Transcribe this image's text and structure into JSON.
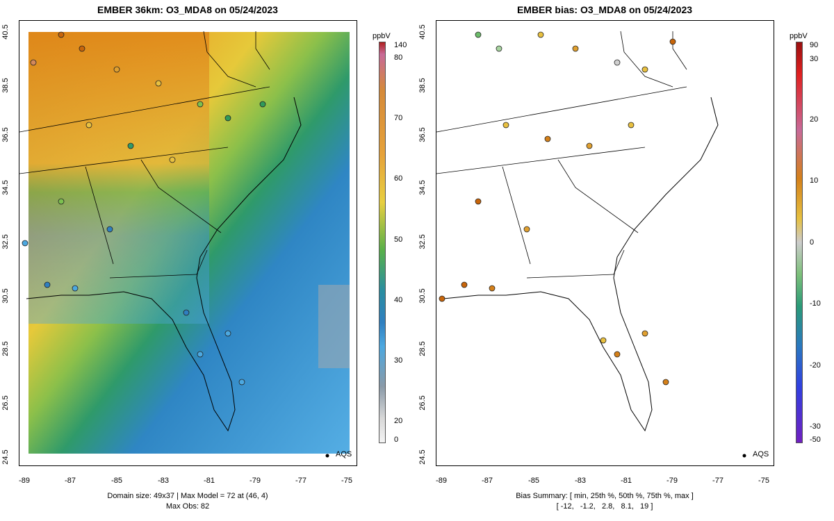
{
  "left_panel": {
    "title": "EMBER 36km: O3_MDA8 on 05/24/2023",
    "footer_line1": "Domain size: 49x37 | Max Model = 72 at (46, 4)",
    "footer_line2": "Max Obs: 82",
    "legend_label": "AQS",
    "colorbar": {
      "unit": "ppbV",
      "labels": [
        "140",
        "80",
        "70",
        "60",
        "50",
        "40",
        "30",
        "20",
        "0"
      ]
    }
  },
  "right_panel": {
    "title": "EMBER bias: O3_MDA8 on 05/24/2023",
    "footer_line1": "Bias Summary: [ min, 25th %, 50th %, 75th %, max ]",
    "footer_line2": "[ -12,   -1.2,   2.8,   8.1,   19 ]",
    "legend_label": "AQS",
    "colorbar": {
      "unit": "ppbV",
      "labels": [
        "90",
        "30",
        "20",
        "10",
        "0",
        "-10",
        "-20",
        "-30",
        "-50"
      ]
    }
  },
  "axes": {
    "y_ticks": [
      "40.5",
      "38.5",
      "36.5",
      "34.5",
      "32.5",
      "30.5",
      "28.5",
      "26.5",
      "24.5"
    ],
    "x_ticks": [
      "-89",
      "-87",
      "-85",
      "-83",
      "-81",
      "-79",
      "-77",
      "-75"
    ]
  },
  "colors": {
    "high": "#c8650a",
    "mid_high": "#e8b61a",
    "mid": "#2f9a5a",
    "low": "#2f7fc0",
    "very_low": "#4ca8e0"
  }
}
